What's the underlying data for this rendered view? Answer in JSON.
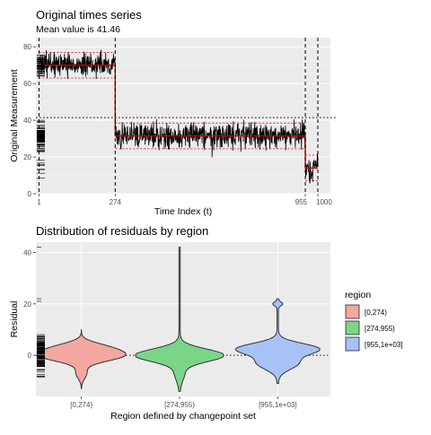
{
  "chart_data": [
    {
      "type": "line",
      "title": "Original times series",
      "subtitle": "Mean value is 41.46",
      "xlabel": "Time Index (t)",
      "ylabel": "Original Measurement",
      "xlim": [
        1,
        1000
      ],
      "ylim": [
        0,
        85
      ],
      "x_ticks": [
        1,
        274,
        955,
        1000
      ],
      "x_tick_labels": [
        "1",
        "274",
        "955",
        "1000"
      ],
      "y_ticks": [
        0,
        20,
        40,
        60,
        80
      ],
      "y_tick_labels": [
        "0",
        "20",
        "40",
        "60",
        "80"
      ],
      "overall_mean": 41.46,
      "changepoints": [
        1,
        274,
        955,
        1000
      ],
      "segments": [
        {
          "start": 1,
          "end": 274,
          "mean": 70,
          "band": [
            63,
            77
          ],
          "noise_sd": 3.5
        },
        {
          "start": 274,
          "end": 955,
          "mean": 31.5,
          "band": [
            24.5,
            38.5
          ],
          "noise_sd": 3.5
        },
        {
          "start": 955,
          "end": 1000,
          "mean": 14,
          "band": [
            7,
            21
          ],
          "noise_sd": 3.5
        }
      ],
      "grid": true,
      "colors": {
        "series": "#000000",
        "segment_mean": "#cc0000",
        "band": "#cc0000",
        "panel": "#ebebeb"
      }
    },
    {
      "type": "violin",
      "title": "Distribution of residuals by region",
      "xlabel": "Region defined by changepoint set",
      "ylabel": "Residual",
      "ylim": [
        -16,
        44
      ],
      "y_ticks": [
        0,
        20,
        40
      ],
      "y_tick_labels": [
        "0",
        "20",
        "40"
      ],
      "categories": [
        "[0,274)",
        "[274,955)",
        "[955,1e+03]"
      ],
      "series": [
        {
          "name": "[0,274)",
          "color": "#f4a6a0",
          "min": -13,
          "max": 10,
          "mode": 0,
          "max_halfwidth": 0.45
        },
        {
          "name": "[274,955)",
          "color": "#7bd589",
          "min": -14,
          "max": 42,
          "mode": 0,
          "max_halfwidth": 0.45
        },
        {
          "name": "[955,1e+03]",
          "color": "#a8c2f5",
          "min": -11,
          "max": 22,
          "mode": 3,
          "max_halfwidth": 0.45
        }
      ],
      "legend": {
        "title": "region",
        "position": "right",
        "items": [
          "[0,274)",
          "[274,955)",
          "[955,1e+03]"
        ]
      },
      "grid": true
    }
  ]
}
